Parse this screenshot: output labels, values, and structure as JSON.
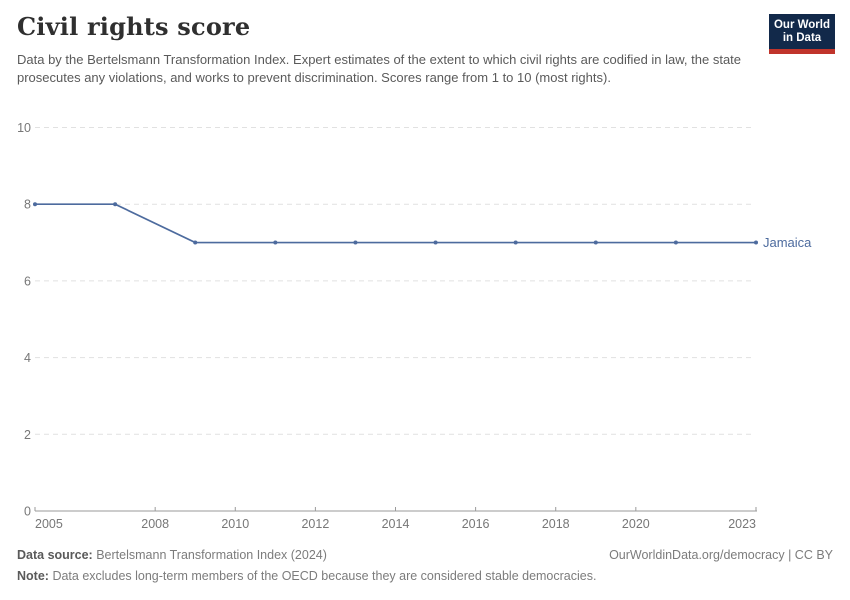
{
  "header": {
    "title": "Civil rights score",
    "subtitle": "Data by the Bertelsmann Transformation Index. Expert estimates of the extent to which civil rights are codified in law, the state prosecutes any violations, and works to prevent discrimination. Scores range from 1 to 10 (most rights).",
    "logo": {
      "line1": "Our World",
      "line2": "in Data",
      "bg_color": "#12294a",
      "bar_color": "#c0342b"
    }
  },
  "chart_data": {
    "type": "line",
    "title": "Civil rights score",
    "series": [
      {
        "name": "Jamaica",
        "color": "#4d6b9e",
        "x": [
          2005,
          2007,
          2009,
          2011,
          2013,
          2015,
          2017,
          2019,
          2021,
          2023
        ],
        "values": [
          8,
          8,
          7,
          7,
          7,
          7,
          7,
          7,
          7,
          7
        ]
      }
    ],
    "xlabel": "",
    "ylabel": "",
    "xlim": [
      2005,
      2023
    ],
    "ylim": [
      0,
      10
    ],
    "x_ticks": [
      2005,
      2008,
      2010,
      2012,
      2014,
      2016,
      2018,
      2020,
      2023
    ],
    "y_ticks": [
      0,
      2,
      4,
      6,
      8,
      10
    ],
    "grid": "horizontal-dashed",
    "legend_position": "end-of-line-label"
  },
  "footer": {
    "source_label": "Data source:",
    "source_text": "Bertelsmann Transformation Index (2024)",
    "link": "OurWorldinData.org/democracy | CC BY",
    "note_label": "Note:",
    "note_text": "Data excludes long-term members of the OECD because they are considered stable democracies."
  },
  "colors": {
    "accent_line": "#4d6b9e",
    "gridline": "#e1e1e1",
    "axis": "#9a9a9a",
    "tick_text": "#777777",
    "logo_navy": "#12294a",
    "logo_red": "#c0342b"
  }
}
